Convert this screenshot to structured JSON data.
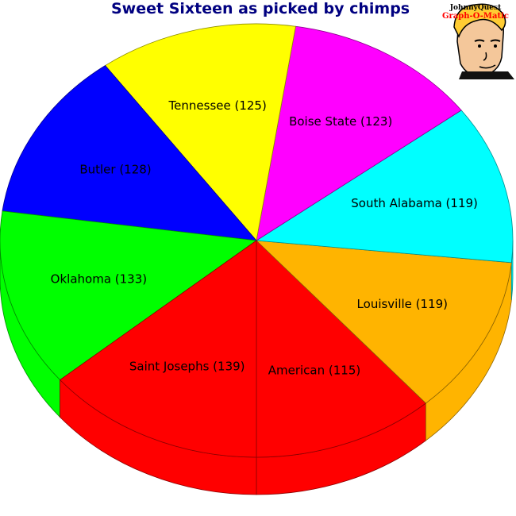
{
  "title": "Sweet Sixteen as picked by chimps",
  "badge": {
    "line1": "JohnnyQuest",
    "line2": "Graph-O-Matic",
    "icon": "cartoon-boy-face"
  },
  "chart_data": {
    "type": "pie",
    "title": "Sweet Sixteen as picked by chimps",
    "style": "3d",
    "slices": [
      {
        "label": "American (115)",
        "value": 115,
        "color": "#ff0000"
      },
      {
        "label": "Louisville (119)",
        "value": 119,
        "color": "#ffb400"
      },
      {
        "label": "South Alabama (119)",
        "value": 119,
        "color": "#00ffff"
      },
      {
        "label": "Boise State (123)",
        "value": 123,
        "color": "#ff00ff"
      },
      {
        "label": "Tennessee (125)",
        "value": 125,
        "color": "#ffff00"
      },
      {
        "label": "Butler (128)",
        "value": 128,
        "color": "#0000ff"
      },
      {
        "label": "Oklahoma (133)",
        "value": 133,
        "color": "#00ff00"
      },
      {
        "label": "Saint Josephs (139)",
        "value": 139,
        "color": "#ff0000"
      }
    ]
  }
}
